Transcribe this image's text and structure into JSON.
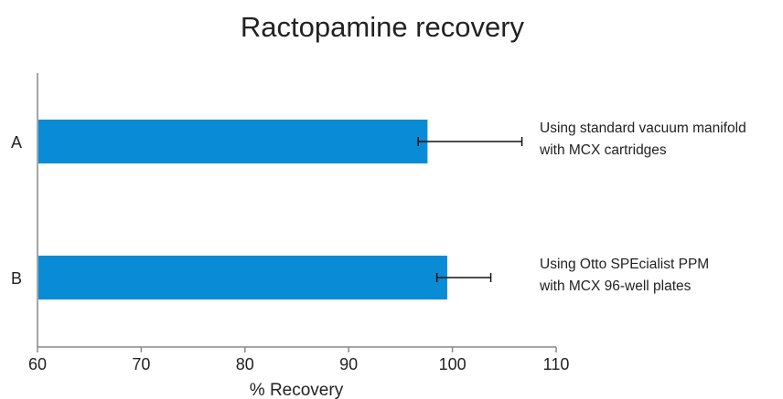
{
  "chart_data": {
    "type": "bar",
    "orientation": "horizontal",
    "title": "Ractopamine recovery",
    "xlabel": "% Recovery",
    "ylabel": "",
    "xlim": [
      60,
      110
    ],
    "xticks": [
      "60",
      "70",
      "80",
      "90",
      "100",
      "110"
    ],
    "grid": false,
    "categories": [
      "A",
      "B"
    ],
    "values": [
      97.6,
      99.5
    ],
    "error_low": [
      96.7,
      98.5
    ],
    "error_high": [
      106.7,
      103.7
    ],
    "bar_color": "#0a8bd5",
    "annotations": [
      [
        "Using standard vacuum manifold",
        "with MCX cartridges"
      ],
      [
        "Using Otto SPEcialist PPM",
        "with MCX 96-well plates"
      ]
    ]
  }
}
